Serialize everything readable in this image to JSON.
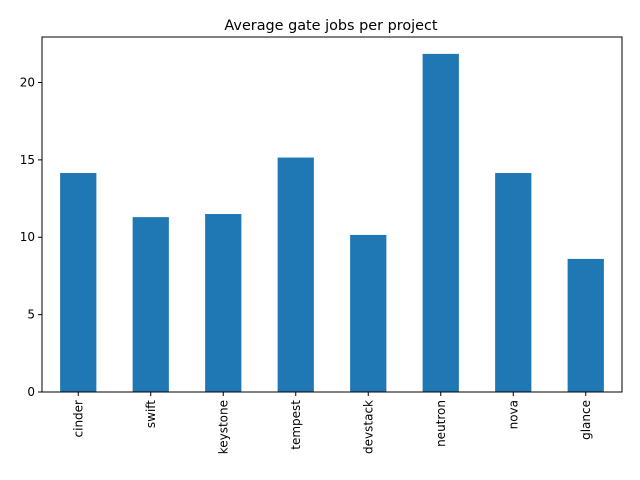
{
  "chart_data": {
    "type": "bar",
    "title": "Average gate jobs per project",
    "xlabel": "",
    "ylabel": "",
    "categories": [
      "cinder",
      "swift",
      "keystone",
      "tempest",
      "devstack",
      "neutron",
      "nova",
      "glance"
    ],
    "values": [
      14.15,
      11.3,
      11.5,
      15.15,
      10.15,
      21.85,
      14.15,
      8.6
    ],
    "ylim": [
      0,
      22.94
    ],
    "yticks": [
      0,
      5,
      10,
      15,
      20
    ],
    "bar_color": "#1f77b4",
    "grid": false,
    "legend": "none",
    "xtick_rotation": "vertical"
  }
}
